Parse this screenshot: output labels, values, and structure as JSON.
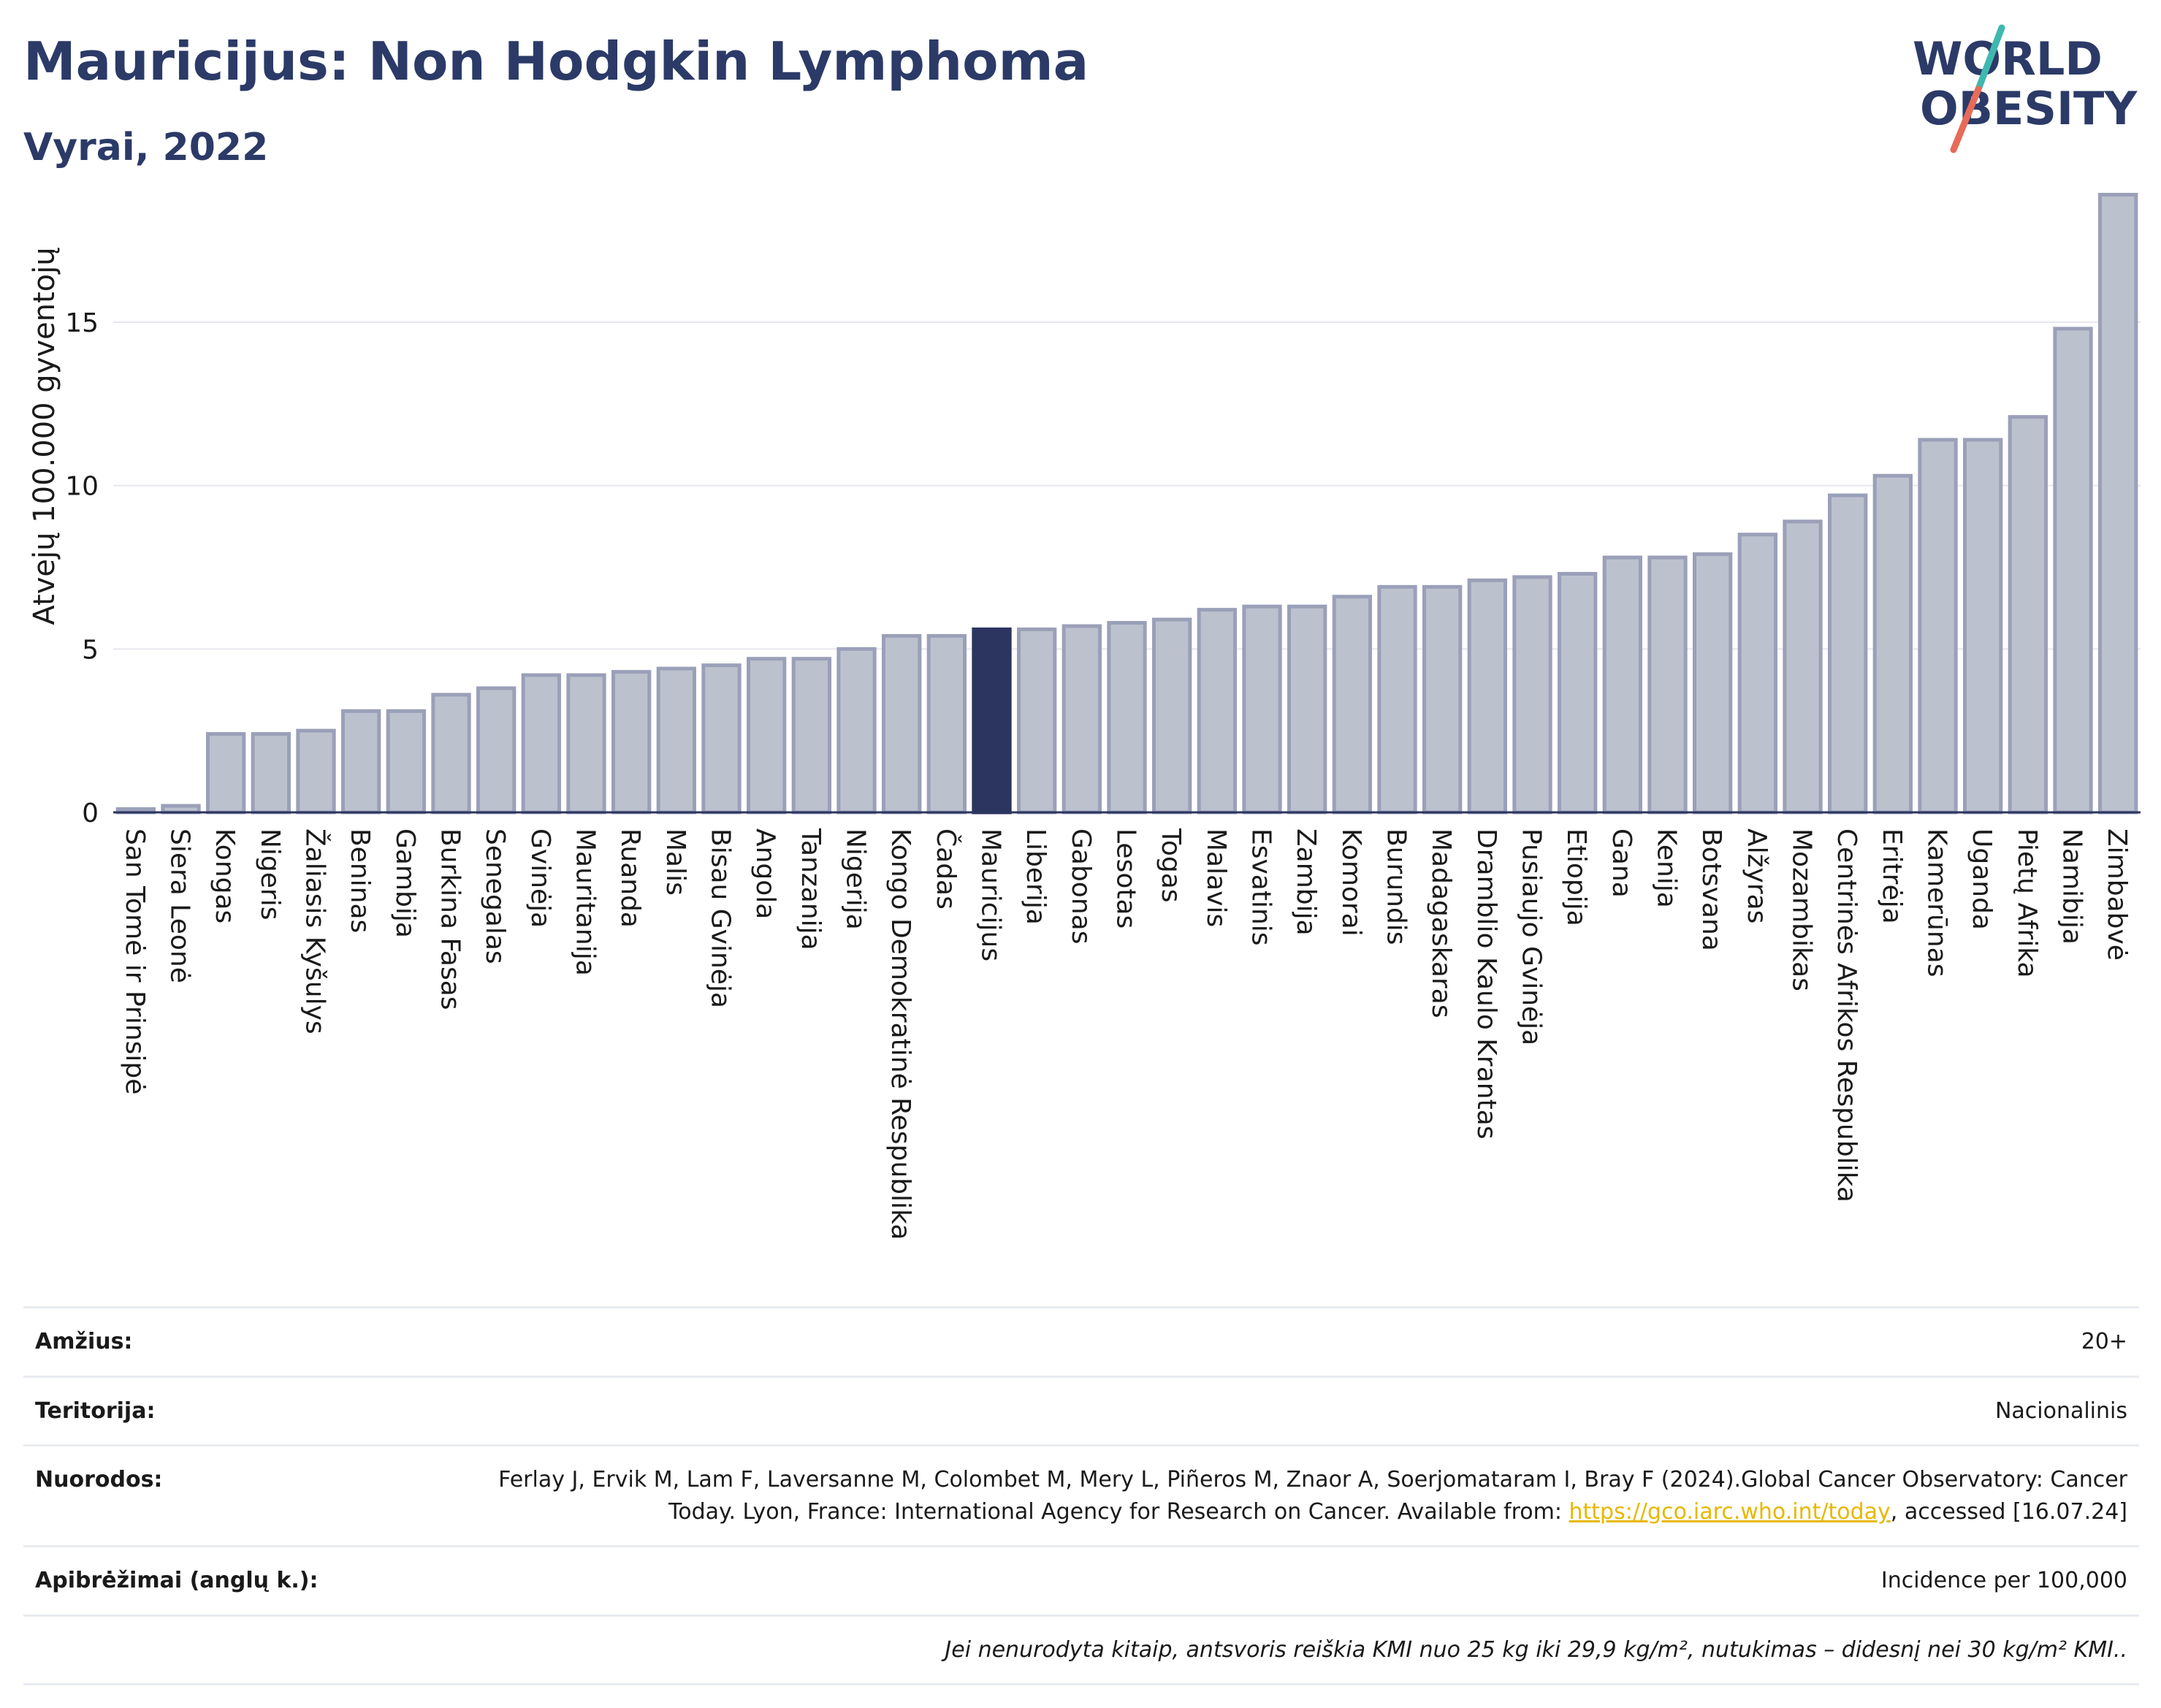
{
  "header": {
    "title": "Mauricijus: Non Hodgkin Lymphoma",
    "subtitle": "Vyrai, 2022"
  },
  "logo": {
    "line1": "WORLD",
    "line2": "OBESITY"
  },
  "colors": {
    "bar": "#bcc1ce",
    "bar_border": "#9aa0b8",
    "highlight": "#2b3560",
    "title": "#2b3a67",
    "grid": "#e6e8ee"
  },
  "chart_data": {
    "type": "bar",
    "ylabel": "Atvejų 100.000 gyventojų",
    "ylim": [
      0,
      19
    ],
    "yticks": [
      0,
      5,
      10,
      15
    ],
    "grid": true,
    "highlight": "Mauricijus",
    "categories": [
      "San Tomė ir Prinsipė",
      "Siera Leonė",
      "Kongas",
      "Nigeris",
      "Žaliasis Kyšulys",
      "Beninas",
      "Gambija",
      "Burkina Fasas",
      "Senegalas",
      "Gvinėja",
      "Mauritanija",
      "Ruanda",
      "Malis",
      "Bisau Gvinėja",
      "Angola",
      "Tanzanija",
      "Nigerija",
      "Kongo Demokratinė Respublika",
      "Čadas",
      "Mauricijus",
      "Liberija",
      "Gabonas",
      "Lesotas",
      "Togas",
      "Malavis",
      "Esvatinis",
      "Zambija",
      "Komorai",
      "Burundis",
      "Madagaskaras",
      "Dramblio Kaulo Krantas",
      "Pusiaujo Gvinėja",
      "Etiopija",
      "Gana",
      "Kenija",
      "Botsvana",
      "Alžyras",
      "Mozambikas",
      "Centrinės Afrikos Respublika",
      "Eritrėja",
      "Kamerūnas",
      "Uganda",
      "Pietų Afrika",
      "Namibija",
      "Zimbabvė"
    ],
    "values": [
      0.1,
      0.2,
      2.4,
      2.4,
      2.5,
      3.1,
      3.1,
      3.6,
      3.8,
      4.2,
      4.2,
      4.3,
      4.4,
      4.5,
      4.7,
      4.7,
      5.0,
      5.4,
      5.4,
      5.6,
      5.6,
      5.7,
      5.8,
      5.9,
      6.2,
      6.3,
      6.3,
      6.6,
      6.9,
      6.9,
      7.1,
      7.2,
      7.3,
      7.8,
      7.8,
      7.9,
      8.5,
      8.9,
      9.7,
      10.3,
      11.4,
      11.4,
      12.1,
      14.8,
      18.9
    ]
  },
  "meta": {
    "age_label": "Amžius:",
    "age_value": "20+",
    "territory_label": "Teritorija:",
    "territory_value": "Nacionalinis",
    "refs_label": "Nuorodos:",
    "refs_text": "Ferlay J, Ervik M, Lam F, Laversanne M, Colombet M, Mery L, Piñeros M, Znaor A, Soerjomataram I, Bray F (2024).Global Cancer Observatory: Cancer Today. Lyon, France: International Agency for Research on Cancer. Available from: ",
    "refs_link": "https://gco.iarc.who.int/today",
    "refs_tail": ", accessed [16.07.24]",
    "def_label": "Apibrėžimai (anglų k.):",
    "def_value": "Incidence per 100,000",
    "note": "Jei nenurodyta kitaip, antsvoris reiškia KMI nuo 25 kg iki 29,9 kg/m², nutukimas – didesnį nei 30 kg/m² KMI.."
  }
}
